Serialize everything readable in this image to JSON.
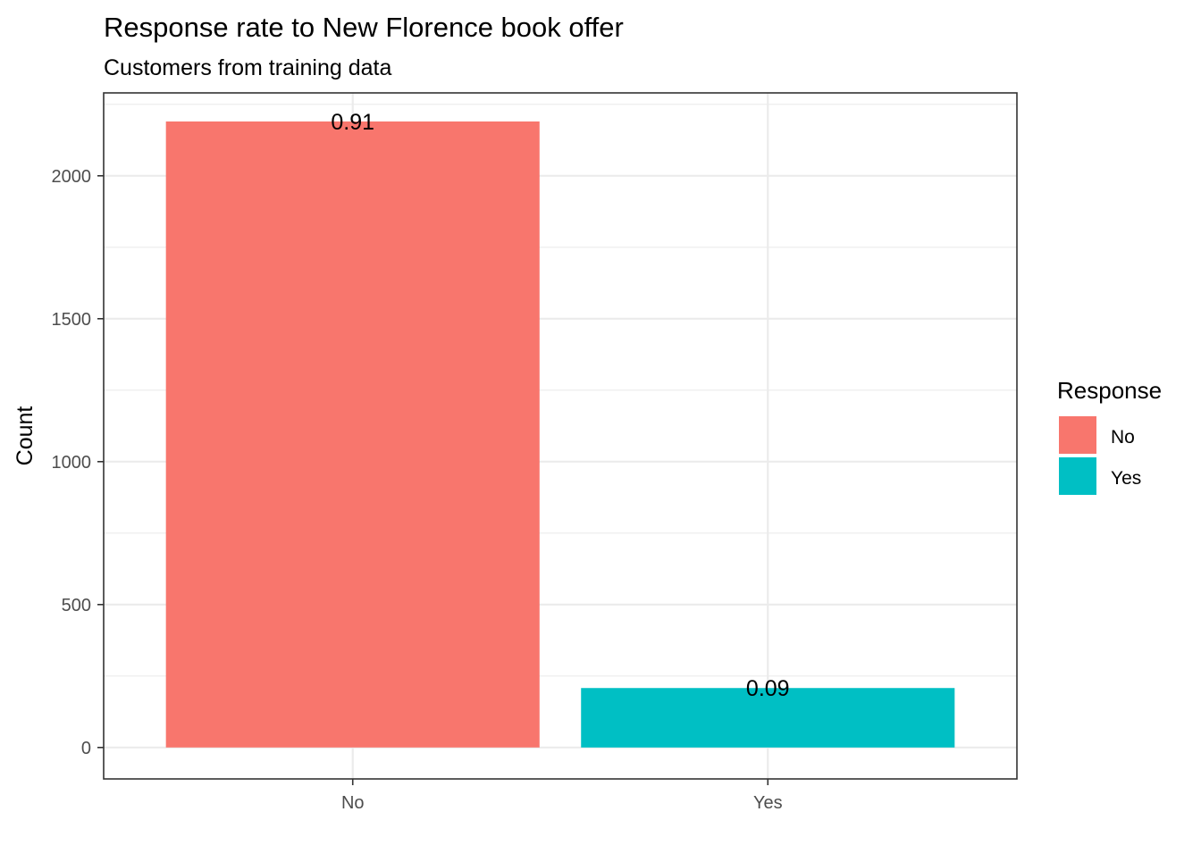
{
  "chart_data": {
    "type": "bar",
    "title": "Response rate to New Florence book offer",
    "subtitle": "Customers from training data",
    "xlabel": "",
    "ylabel": "Count",
    "categories": [
      "No",
      "Yes"
    ],
    "values": [
      2190,
      208
    ],
    "bar_labels": [
      "0.91",
      "0.09"
    ],
    "ylim": [
      -110,
      2290
    ],
    "yticks": [
      0,
      500,
      1000,
      1500,
      2000
    ],
    "grid": true,
    "legend": {
      "title": "Response",
      "placement": "right",
      "entries": [
        {
          "label": "No",
          "color": "#F8766D"
        },
        {
          "label": "Yes",
          "color": "#00BFC4"
        }
      ]
    },
    "colors": [
      "#F8766D",
      "#00BFC4"
    ]
  }
}
